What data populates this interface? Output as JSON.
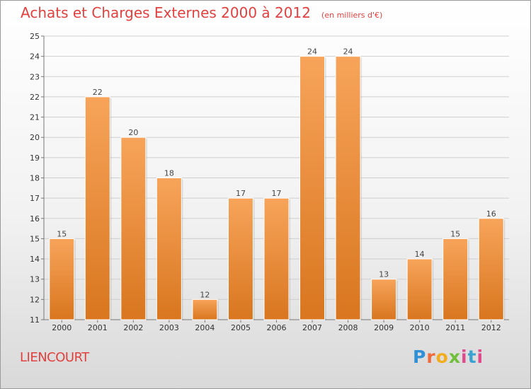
{
  "header": {
    "title": "Achats et Charges Externes 2000 à 2012",
    "unit": "(en milliers d'€)"
  },
  "footer": {
    "location": "LIENCOURT",
    "brand": "Proxiti"
  },
  "colors": {
    "title": "#e0413f",
    "bar_light": "#f7a45a",
    "bar_dark": "#d9761f"
  },
  "chart_data": {
    "type": "bar",
    "title": "Achats et Charges Externes 2000 à 2012",
    "subtitle": "(en milliers d'€)",
    "categories": [
      "2000",
      "2001",
      "2002",
      "2003",
      "2004",
      "2005",
      "2006",
      "2007",
      "2008",
      "2009",
      "2010",
      "2011",
      "2012"
    ],
    "values": [
      15,
      22,
      20,
      18,
      12,
      17,
      17,
      24,
      24,
      13,
      14,
      15,
      16
    ],
    "ylim": [
      11,
      25
    ],
    "yticks": [
      11,
      12,
      13,
      14,
      15,
      16,
      17,
      18,
      19,
      20,
      21,
      22,
      23,
      24,
      25
    ],
    "grid": true,
    "data_labels": true
  }
}
